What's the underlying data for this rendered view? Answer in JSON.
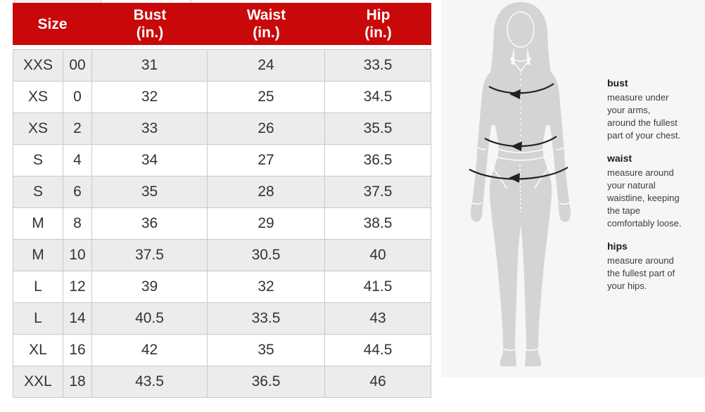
{
  "table": {
    "headers": {
      "size": "Size",
      "bust": {
        "label": "Bust",
        "unit": "(in.)"
      },
      "waist": {
        "label": "Waist",
        "unit": "(in.)"
      },
      "hip": {
        "label": "Hip",
        "unit": "(in.)"
      }
    },
    "rows": [
      {
        "size": "XXS",
        "num": "00",
        "bust": "31",
        "waist": "24",
        "hip": "33.5"
      },
      {
        "size": "XS",
        "num": "0",
        "bust": "32",
        "waist": "25",
        "hip": "34.5"
      },
      {
        "size": "XS",
        "num": "2",
        "bust": "33",
        "waist": "26",
        "hip": "35.5"
      },
      {
        "size": "S",
        "num": "4",
        "bust": "34",
        "waist": "27",
        "hip": "36.5"
      },
      {
        "size": "S",
        "num": "6",
        "bust": "35",
        "waist": "28",
        "hip": "37.5"
      },
      {
        "size": "M",
        "num": "8",
        "bust": "36",
        "waist": "29",
        "hip": "38.5"
      },
      {
        "size": "M",
        "num": "10",
        "bust": "37.5",
        "waist": "30.5",
        "hip": "40"
      },
      {
        "size": "L",
        "num": "12",
        "bust": "39",
        "waist": "32",
        "hip": "41.5"
      },
      {
        "size": "L",
        "num": "14",
        "bust": "40.5",
        "waist": "33.5",
        "hip": "43"
      },
      {
        "size": "XL",
        "num": "16",
        "bust": "42",
        "waist": "35",
        "hip": "44.5"
      },
      {
        "size": "XXL",
        "num": "18",
        "bust": "43.5",
        "waist": "36.5",
        "hip": "46"
      }
    ]
  },
  "guide": {
    "sections": [
      {
        "id": "bust",
        "heading": "bust",
        "lines": [
          "measure under",
          "your arms,",
          "around the fullest",
          "part of your chest."
        ]
      },
      {
        "id": "waist",
        "heading": "waist",
        "lines": [
          "measure around",
          "your natural",
          "waistline, keeping",
          "the tape",
          "comfortably loose."
        ]
      },
      {
        "id": "hips",
        "heading": "hips",
        "lines": [
          "measure around",
          "the fullest part of",
          "your hips."
        ]
      }
    ]
  },
  "colors": {
    "header_red": "#c90909",
    "row_alt_gray": "#ececec",
    "cell_border": "#c9c9c9",
    "table_text": "#333333",
    "panel_bg": "#f5f6f6",
    "silhouette_gray": "#d2d4d6",
    "arrow_black": "#222222"
  }
}
